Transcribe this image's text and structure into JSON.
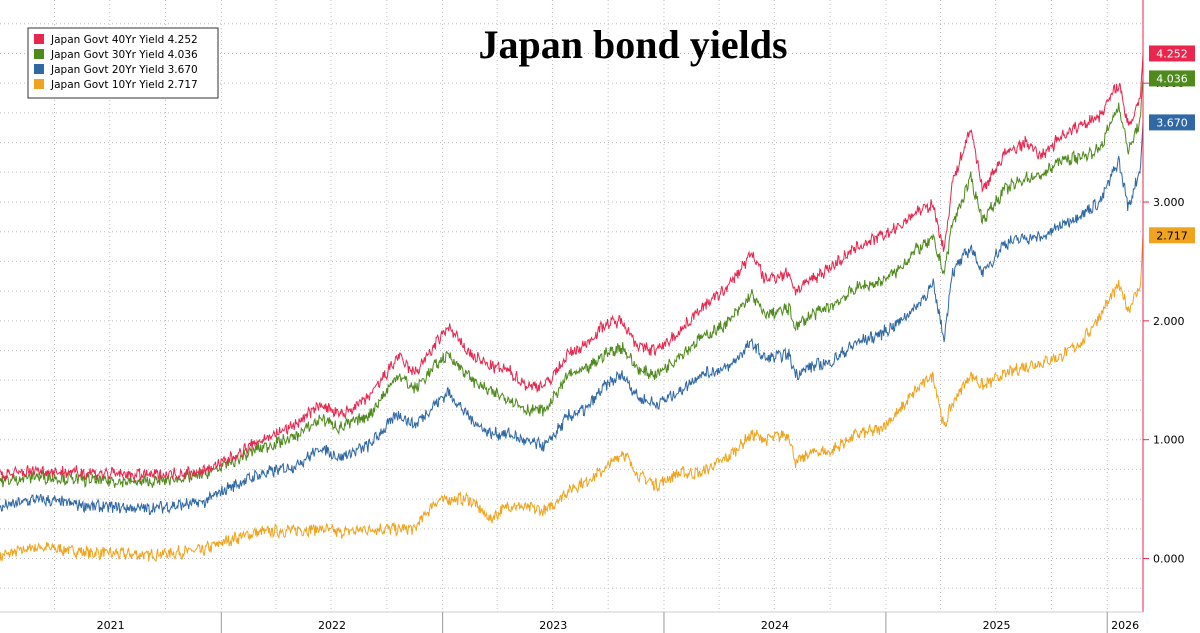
{
  "chart_data": {
    "type": "line",
    "title": "Japan bond yields",
    "xlabel": "",
    "ylabel": "",
    "x_range": [
      "2021-01-01",
      "2026-03-01"
    ],
    "ylim": [
      -0.45,
      4.7
    ],
    "y_ticks": [
      "0.000",
      "1.000",
      "2.000",
      "3.000",
      "4.000"
    ],
    "x_ticks": [
      "2021",
      "2022",
      "2023",
      "2024",
      "2025",
      "2026"
    ],
    "grid": true,
    "legend_position": "top-left",
    "series": [
      {
        "name": "Japan Govt 40Yr Yield",
        "last_value": "4.252",
        "color": "#e8264e",
        "points": [
          [
            "2021-01-01",
            0.7
          ],
          [
            "2021-03-01",
            0.74
          ],
          [
            "2021-06-01",
            0.72
          ],
          [
            "2021-09-01",
            0.7
          ],
          [
            "2021-12-01",
            0.73
          ],
          [
            "2022-01-15",
            0.84
          ],
          [
            "2022-03-01",
            0.98
          ],
          [
            "2022-05-01",
            1.12
          ],
          [
            "2022-06-15",
            1.3
          ],
          [
            "2022-07-15",
            1.2
          ],
          [
            "2022-09-01",
            1.35
          ],
          [
            "2022-10-20",
            1.7
          ],
          [
            "2022-11-15",
            1.55
          ],
          [
            "2022-12-20",
            1.8
          ],
          [
            "2023-01-10",
            1.95
          ],
          [
            "2023-02-15",
            1.72
          ],
          [
            "2023-03-20",
            1.62
          ],
          [
            "2023-04-20",
            1.58
          ],
          [
            "2023-05-20",
            1.45
          ],
          [
            "2023-06-20",
            1.46
          ],
          [
            "2023-07-28",
            1.72
          ],
          [
            "2023-08-25",
            1.8
          ],
          [
            "2023-09-25",
            1.97
          ],
          [
            "2023-10-25",
            2.0
          ],
          [
            "2023-11-20",
            1.78
          ],
          [
            "2023-12-20",
            1.75
          ],
          [
            "2024-01-25",
            1.9
          ],
          [
            "2024-03-01",
            2.1
          ],
          [
            "2024-04-15",
            2.28
          ],
          [
            "2024-05-25",
            2.57
          ],
          [
            "2024-06-15",
            2.35
          ],
          [
            "2024-07-25",
            2.4
          ],
          [
            "2024-08-05",
            2.25
          ],
          [
            "2024-09-01",
            2.35
          ],
          [
            "2024-10-01",
            2.45
          ],
          [
            "2024-11-15",
            2.62
          ],
          [
            "2024-12-20",
            2.7
          ],
          [
            "2025-01-20",
            2.78
          ],
          [
            "2025-02-20",
            2.92
          ],
          [
            "2025-03-20",
            2.97
          ],
          [
            "2025-04-07",
            2.58
          ],
          [
            "2025-04-20",
            3.15
          ],
          [
            "2025-05-21",
            3.62
          ],
          [
            "2025-06-10",
            3.1
          ],
          [
            "2025-07-15",
            3.4
          ],
          [
            "2025-08-20",
            3.5
          ],
          [
            "2025-09-15",
            3.38
          ],
          [
            "2025-10-15",
            3.55
          ],
          [
            "2025-11-20",
            3.65
          ],
          [
            "2025-12-20",
            3.73
          ],
          [
            "2026-01-20",
            4.0
          ],
          [
            "2026-02-05",
            3.62
          ],
          [
            "2026-02-25",
            3.9
          ],
          [
            "2026-03-01",
            4.25
          ]
        ]
      },
      {
        "name": "Japan Govt 30Yr Yield",
        "last_value": "4.036",
        "color": "#4e8a1c",
        "points": [
          [
            "2021-01-01",
            0.65
          ],
          [
            "2021-03-01",
            0.69
          ],
          [
            "2021-06-01",
            0.66
          ],
          [
            "2021-09-01",
            0.64
          ],
          [
            "2021-12-01",
            0.7
          ],
          [
            "2022-01-15",
            0.8
          ],
          [
            "2022-03-01",
            0.92
          ],
          [
            "2022-05-01",
            1.02
          ],
          [
            "2022-06-15",
            1.18
          ],
          [
            "2022-07-15",
            1.1
          ],
          [
            "2022-09-01",
            1.2
          ],
          [
            "2022-10-20",
            1.55
          ],
          [
            "2022-11-15",
            1.42
          ],
          [
            "2022-12-20",
            1.62
          ],
          [
            "2023-01-10",
            1.72
          ],
          [
            "2023-02-15",
            1.52
          ],
          [
            "2023-03-20",
            1.4
          ],
          [
            "2023-04-20",
            1.35
          ],
          [
            "2023-05-20",
            1.25
          ],
          [
            "2023-06-20",
            1.25
          ],
          [
            "2023-07-28",
            1.55
          ],
          [
            "2023-08-25",
            1.58
          ],
          [
            "2023-09-25",
            1.72
          ],
          [
            "2023-10-25",
            1.78
          ],
          [
            "2023-11-20",
            1.58
          ],
          [
            "2023-12-20",
            1.55
          ],
          [
            "2024-01-25",
            1.7
          ],
          [
            "2024-03-01",
            1.85
          ],
          [
            "2024-04-15",
            1.98
          ],
          [
            "2024-05-25",
            2.22
          ],
          [
            "2024-06-15",
            2.05
          ],
          [
            "2024-07-25",
            2.1
          ],
          [
            "2024-08-05",
            1.95
          ],
          [
            "2024-09-01",
            2.05
          ],
          [
            "2024-10-01",
            2.12
          ],
          [
            "2024-11-15",
            2.28
          ],
          [
            "2024-12-20",
            2.32
          ],
          [
            "2025-01-20",
            2.42
          ],
          [
            "2025-02-20",
            2.6
          ],
          [
            "2025-03-20",
            2.68
          ],
          [
            "2025-04-07",
            2.4
          ],
          [
            "2025-04-20",
            2.8
          ],
          [
            "2025-05-21",
            3.2
          ],
          [
            "2025-06-10",
            2.85
          ],
          [
            "2025-07-15",
            3.1
          ],
          [
            "2025-08-20",
            3.2
          ],
          [
            "2025-09-15",
            3.22
          ],
          [
            "2025-10-15",
            3.35
          ],
          [
            "2025-11-20",
            3.38
          ],
          [
            "2025-12-20",
            3.45
          ],
          [
            "2026-01-20",
            3.82
          ],
          [
            "2026-02-05",
            3.42
          ],
          [
            "2026-02-25",
            3.7
          ],
          [
            "2026-03-01",
            4.04
          ]
        ]
      },
      {
        "name": "Japan Govt 20Yr Yield",
        "last_value": "3.670",
        "color": "#2f68a4",
        "points": [
          [
            "2021-01-01",
            0.43
          ],
          [
            "2021-03-01",
            0.5
          ],
          [
            "2021-06-01",
            0.44
          ],
          [
            "2021-09-01",
            0.42
          ],
          [
            "2021-12-01",
            0.47
          ],
          [
            "2022-01-15",
            0.6
          ],
          [
            "2022-03-01",
            0.7
          ],
          [
            "2022-05-01",
            0.78
          ],
          [
            "2022-06-15",
            0.93
          ],
          [
            "2022-07-15",
            0.85
          ],
          [
            "2022-09-01",
            0.95
          ],
          [
            "2022-10-20",
            1.22
          ],
          [
            "2022-11-15",
            1.12
          ],
          [
            "2022-12-20",
            1.3
          ],
          [
            "2023-01-10",
            1.4
          ],
          [
            "2023-02-15",
            1.18
          ],
          [
            "2023-03-20",
            1.05
          ],
          [
            "2023-04-20",
            1.05
          ],
          [
            "2023-05-20",
            0.98
          ],
          [
            "2023-06-20",
            0.95
          ],
          [
            "2023-07-28",
            1.2
          ],
          [
            "2023-08-25",
            1.25
          ],
          [
            "2023-09-25",
            1.45
          ],
          [
            "2023-10-25",
            1.55
          ],
          [
            "2023-11-20",
            1.35
          ],
          [
            "2023-12-20",
            1.3
          ],
          [
            "2024-01-25",
            1.4
          ],
          [
            "2024-03-01",
            1.55
          ],
          [
            "2024-04-15",
            1.6
          ],
          [
            "2024-05-25",
            1.82
          ],
          [
            "2024-06-15",
            1.68
          ],
          [
            "2024-07-25",
            1.72
          ],
          [
            "2024-08-05",
            1.55
          ],
          [
            "2024-09-01",
            1.62
          ],
          [
            "2024-10-01",
            1.65
          ],
          [
            "2024-11-15",
            1.82
          ],
          [
            "2024-12-20",
            1.88
          ],
          [
            "2025-01-20",
            1.98
          ],
          [
            "2025-02-20",
            2.12
          ],
          [
            "2025-03-20",
            2.3
          ],
          [
            "2025-04-07",
            1.85
          ],
          [
            "2025-04-20",
            2.4
          ],
          [
            "2025-05-21",
            2.62
          ],
          [
            "2025-06-10",
            2.4
          ],
          [
            "2025-07-15",
            2.65
          ],
          [
            "2025-08-20",
            2.7
          ],
          [
            "2025-09-15",
            2.7
          ],
          [
            "2025-10-15",
            2.8
          ],
          [
            "2025-11-20",
            2.9
          ],
          [
            "2025-12-20",
            3.0
          ],
          [
            "2026-01-20",
            3.35
          ],
          [
            "2026-02-05",
            2.95
          ],
          [
            "2026-02-25",
            3.3
          ],
          [
            "2026-03-01",
            3.67
          ]
        ]
      },
      {
        "name": "Japan Govt 10Yr Yield",
        "last_value": "2.717",
        "color": "#f0a31e",
        "points": [
          [
            "2021-01-01",
            0.02
          ],
          [
            "2021-03-01",
            0.1
          ],
          [
            "2021-06-01",
            0.05
          ],
          [
            "2021-09-01",
            0.03
          ],
          [
            "2021-12-01",
            0.07
          ],
          [
            "2022-01-15",
            0.16
          ],
          [
            "2022-03-01",
            0.22
          ],
          [
            "2022-05-01",
            0.24
          ],
          [
            "2022-06-15",
            0.25
          ],
          [
            "2022-07-15",
            0.22
          ],
          [
            "2022-09-01",
            0.25
          ],
          [
            "2022-10-20",
            0.25
          ],
          [
            "2022-11-15",
            0.25
          ],
          [
            "2022-12-20",
            0.48
          ],
          [
            "2023-01-10",
            0.5
          ],
          [
            "2023-02-15",
            0.5
          ],
          [
            "2023-03-20",
            0.33
          ],
          [
            "2023-04-20",
            0.45
          ],
          [
            "2023-05-20",
            0.43
          ],
          [
            "2023-06-20",
            0.4
          ],
          [
            "2023-07-28",
            0.58
          ],
          [
            "2023-08-25",
            0.65
          ],
          [
            "2023-09-25",
            0.75
          ],
          [
            "2023-10-25",
            0.9
          ],
          [
            "2023-11-20",
            0.7
          ],
          [
            "2023-12-20",
            0.62
          ],
          [
            "2024-01-25",
            0.72
          ],
          [
            "2024-03-01",
            0.72
          ],
          [
            "2024-04-15",
            0.85
          ],
          [
            "2024-05-25",
            1.05
          ],
          [
            "2024-06-15",
            1.0
          ],
          [
            "2024-07-25",
            1.05
          ],
          [
            "2024-08-05",
            0.8
          ],
          [
            "2024-09-01",
            0.9
          ],
          [
            "2024-10-01",
            0.9
          ],
          [
            "2024-11-15",
            1.05
          ],
          [
            "2024-12-20",
            1.08
          ],
          [
            "2025-01-20",
            1.22
          ],
          [
            "2025-02-20",
            1.42
          ],
          [
            "2025-03-20",
            1.55
          ],
          [
            "2025-04-07",
            1.1
          ],
          [
            "2025-04-20",
            1.3
          ],
          [
            "2025-05-21",
            1.55
          ],
          [
            "2025-06-10",
            1.45
          ],
          [
            "2025-07-15",
            1.55
          ],
          [
            "2025-08-20",
            1.62
          ],
          [
            "2025-09-15",
            1.65
          ],
          [
            "2025-10-15",
            1.7
          ],
          [
            "2025-11-20",
            1.82
          ],
          [
            "2025-12-20",
            2.05
          ],
          [
            "2026-01-20",
            2.3
          ],
          [
            "2026-02-05",
            2.1
          ],
          [
            "2026-02-25",
            2.3
          ],
          [
            "2026-03-01",
            2.72
          ]
        ]
      }
    ]
  }
}
